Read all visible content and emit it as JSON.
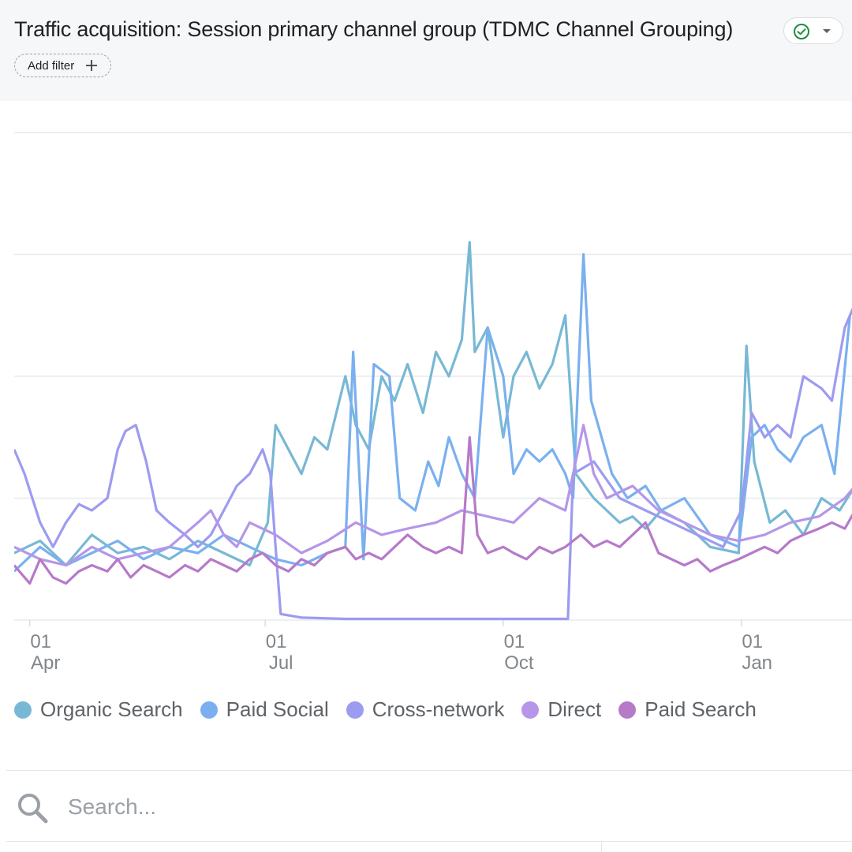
{
  "header": {
    "title": "Traffic acquisition: Session primary channel group (TDMC Channel Grouping)",
    "add_filter_label": "Add filter",
    "status_icon": "check-circle-icon",
    "status_color": "#1e8e3e"
  },
  "search": {
    "placeholder": "Search..."
  },
  "chart_data": {
    "type": "line",
    "x_ticks": [
      {
        "day": "01",
        "month": "Apr",
        "date": "2023-04-01"
      },
      {
        "day": "01",
        "month": "Jul",
        "date": "2023-07-01"
      },
      {
        "day": "01",
        "month": "Oct",
        "date": "2023-10-01"
      },
      {
        "day": "01",
        "month": "Jan",
        "date": "2024-01-01"
      }
    ],
    "x_range": [
      "2023-03-26",
      "2024-02-14"
    ],
    "ylim": [
      0,
      400
    ],
    "y_ticks": [
      0,
      100,
      200,
      300,
      400
    ],
    "y_tick_labels_visible": false,
    "grid": true,
    "legend_position": "bottom",
    "series": [
      {
        "name": "Organic Search",
        "color": "#78b8d4",
        "points": [
          [
            "2023-03-26",
            55
          ],
          [
            "2023-04-05",
            65
          ],
          [
            "2023-04-15",
            45
          ],
          [
            "2023-04-25",
            70
          ],
          [
            "2023-05-05",
            55
          ],
          [
            "2023-05-15",
            60
          ],
          [
            "2023-05-25",
            50
          ],
          [
            "2023-06-05",
            65
          ],
          [
            "2023-06-15",
            55
          ],
          [
            "2023-06-25",
            45
          ],
          [
            "2023-07-02",
            80
          ],
          [
            "2023-07-05",
            160
          ],
          [
            "2023-07-10",
            140
          ],
          [
            "2023-07-15",
            120
          ],
          [
            "2023-07-20",
            150
          ],
          [
            "2023-07-25",
            140
          ],
          [
            "2023-08-01",
            200
          ],
          [
            "2023-08-05",
            160
          ],
          [
            "2023-08-10",
            140
          ],
          [
            "2023-08-15",
            200
          ],
          [
            "2023-08-20",
            180
          ],
          [
            "2023-08-25",
            210
          ],
          [
            "2023-08-31",
            170
          ],
          [
            "2023-09-05",
            220
          ],
          [
            "2023-09-10",
            200
          ],
          [
            "2023-09-15",
            230
          ],
          [
            "2023-09-18",
            310
          ],
          [
            "2023-09-20",
            220
          ],
          [
            "2023-09-25",
            240
          ],
          [
            "2023-10-01",
            150
          ],
          [
            "2023-10-05",
            200
          ],
          [
            "2023-10-10",
            220
          ],
          [
            "2023-10-15",
            190
          ],
          [
            "2023-10-20",
            210
          ],
          [
            "2023-10-25",
            250
          ],
          [
            "2023-10-29",
            120
          ],
          [
            "2023-11-05",
            100
          ],
          [
            "2023-11-10",
            90
          ],
          [
            "2023-11-15",
            80
          ],
          [
            "2023-11-20",
            85
          ],
          [
            "2023-11-25",
            75
          ],
          [
            "2023-12-01",
            90
          ],
          [
            "2023-12-10",
            80
          ],
          [
            "2023-12-20",
            60
          ],
          [
            "2023-12-31",
            55
          ],
          [
            "2024-01-03",
            225
          ],
          [
            "2024-01-06",
            130
          ],
          [
            "2024-01-12",
            80
          ],
          [
            "2024-01-18",
            90
          ],
          [
            "2024-01-25",
            70
          ],
          [
            "2024-02-01",
            100
          ],
          [
            "2024-02-08",
            90
          ],
          [
            "2024-02-14",
            110
          ]
        ]
      },
      {
        "name": "Paid Social",
        "color": "#7ab0ef",
        "points": [
          [
            "2023-03-26",
            40
          ],
          [
            "2023-04-05",
            60
          ],
          [
            "2023-04-15",
            45
          ],
          [
            "2023-04-25",
            55
          ],
          [
            "2023-05-05",
            65
          ],
          [
            "2023-05-15",
            50
          ],
          [
            "2023-05-25",
            60
          ],
          [
            "2023-06-05",
            55
          ],
          [
            "2023-06-15",
            70
          ],
          [
            "2023-06-25",
            60
          ],
          [
            "2023-07-05",
            50
          ],
          [
            "2023-07-15",
            45
          ],
          [
            "2023-07-25",
            55
          ],
          [
            "2023-08-01",
            60
          ],
          [
            "2023-08-04",
            220
          ],
          [
            "2023-08-08",
            50
          ],
          [
            "2023-08-12",
            210
          ],
          [
            "2023-08-18",
            200
          ],
          [
            "2023-08-22",
            100
          ],
          [
            "2023-08-28",
            90
          ],
          [
            "2023-09-02",
            130
          ],
          [
            "2023-09-06",
            110
          ],
          [
            "2023-09-10",
            150
          ],
          [
            "2023-09-15",
            120
          ],
          [
            "2023-09-20",
            100
          ],
          [
            "2023-09-25",
            240
          ],
          [
            "2023-10-01",
            200
          ],
          [
            "2023-10-05",
            120
          ],
          [
            "2023-10-10",
            140
          ],
          [
            "2023-10-15",
            130
          ],
          [
            "2023-10-20",
            140
          ],
          [
            "2023-10-25",
            120
          ],
          [
            "2023-10-28",
            100
          ],
          [
            "2023-11-01",
            300
          ],
          [
            "2023-11-04",
            180
          ],
          [
            "2023-11-08",
            150
          ],
          [
            "2023-11-12",
            120
          ],
          [
            "2023-11-18",
            100
          ],
          [
            "2023-11-25",
            110
          ],
          [
            "2023-12-01",
            90
          ],
          [
            "2023-12-10",
            100
          ],
          [
            "2023-12-20",
            70
          ],
          [
            "2023-12-31",
            60
          ],
          [
            "2024-01-05",
            150
          ],
          [
            "2024-01-10",
            160
          ],
          [
            "2024-01-15",
            140
          ],
          [
            "2024-01-20",
            130
          ],
          [
            "2024-01-25",
            150
          ],
          [
            "2024-02-01",
            160
          ],
          [
            "2024-02-06",
            120
          ],
          [
            "2024-02-12",
            250
          ]
        ]
      },
      {
        "name": "Cross-network",
        "color": "#9d9bf0",
        "points": [
          [
            "2023-03-26",
            140
          ],
          [
            "2023-03-30",
            120
          ],
          [
            "2023-04-05",
            80
          ],
          [
            "2023-04-10",
            60
          ],
          [
            "2023-04-15",
            80
          ],
          [
            "2023-04-20",
            95
          ],
          [
            "2023-04-25",
            90
          ],
          [
            "2023-05-01",
            100
          ],
          [
            "2023-05-05",
            140
          ],
          [
            "2023-05-08",
            155
          ],
          [
            "2023-05-12",
            160
          ],
          [
            "2023-05-16",
            130
          ],
          [
            "2023-05-20",
            90
          ],
          [
            "2023-05-25",
            80
          ],
          [
            "2023-05-31",
            70
          ],
          [
            "2023-06-05",
            60
          ],
          [
            "2023-06-10",
            70
          ],
          [
            "2023-06-15",
            90
          ],
          [
            "2023-06-20",
            110
          ],
          [
            "2023-06-25",
            120
          ],
          [
            "2023-06-30",
            140
          ],
          [
            "2023-07-03",
            120
          ],
          [
            "2023-07-05",
            60
          ],
          [
            "2023-07-07",
            5
          ],
          [
            "2023-07-15",
            2
          ],
          [
            "2023-08-01",
            1
          ],
          [
            "2023-09-01",
            1
          ],
          [
            "2023-10-01",
            1
          ],
          [
            "2023-10-26",
            1
          ],
          [
            "2023-10-28",
            120
          ],
          [
            "2023-11-05",
            130
          ],
          [
            "2023-11-15",
            100
          ],
          [
            "2023-11-25",
            90
          ],
          [
            "2023-12-05",
            80
          ],
          [
            "2023-12-15",
            70
          ],
          [
            "2023-12-25",
            60
          ],
          [
            "2024-01-01",
            90
          ],
          [
            "2024-01-05",
            170
          ],
          [
            "2024-01-10",
            150
          ],
          [
            "2024-01-15",
            160
          ],
          [
            "2024-01-20",
            150
          ],
          [
            "2024-01-25",
            200
          ],
          [
            "2024-02-01",
            190
          ],
          [
            "2024-02-05",
            180
          ],
          [
            "2024-02-10",
            240
          ],
          [
            "2024-02-14",
            260
          ]
        ]
      },
      {
        "name": "Direct",
        "color": "#b596e8",
        "points": [
          [
            "2023-03-26",
            60
          ],
          [
            "2023-04-05",
            50
          ],
          [
            "2023-04-15",
            45
          ],
          [
            "2023-04-25",
            60
          ],
          [
            "2023-05-05",
            50
          ],
          [
            "2023-05-15",
            55
          ],
          [
            "2023-05-25",
            60
          ],
          [
            "2023-06-05",
            80
          ],
          [
            "2023-06-10",
            90
          ],
          [
            "2023-06-15",
            70
          ],
          [
            "2023-06-20",
            60
          ],
          [
            "2023-06-25",
            80
          ],
          [
            "2023-07-05",
            70
          ],
          [
            "2023-07-15",
            55
          ],
          [
            "2023-07-25",
            65
          ],
          [
            "2023-08-05",
            80
          ],
          [
            "2023-08-15",
            70
          ],
          [
            "2023-08-25",
            75
          ],
          [
            "2023-09-05",
            80
          ],
          [
            "2023-09-15",
            90
          ],
          [
            "2023-09-25",
            85
          ],
          [
            "2023-10-05",
            80
          ],
          [
            "2023-10-15",
            100
          ],
          [
            "2023-10-25",
            90
          ],
          [
            "2023-11-01",
            160
          ],
          [
            "2023-11-05",
            120
          ],
          [
            "2023-11-10",
            100
          ],
          [
            "2023-11-20",
            110
          ],
          [
            "2023-11-30",
            90
          ],
          [
            "2023-12-10",
            80
          ],
          [
            "2023-12-20",
            70
          ],
          [
            "2023-12-31",
            65
          ],
          [
            "2024-01-10",
            70
          ],
          [
            "2024-01-20",
            80
          ],
          [
            "2024-01-31",
            85
          ],
          [
            "2024-02-10",
            100
          ],
          [
            "2024-02-14",
            110
          ]
        ]
      },
      {
        "name": "Paid Search",
        "color": "#b67ac9",
        "points": [
          [
            "2023-03-26",
            45
          ],
          [
            "2023-04-01",
            30
          ],
          [
            "2023-04-05",
            50
          ],
          [
            "2023-04-10",
            35
          ],
          [
            "2023-04-15",
            30
          ],
          [
            "2023-04-20",
            40
          ],
          [
            "2023-04-25",
            45
          ],
          [
            "2023-05-01",
            40
          ],
          [
            "2023-05-05",
            50
          ],
          [
            "2023-05-10",
            35
          ],
          [
            "2023-05-15",
            45
          ],
          [
            "2023-05-20",
            40
          ],
          [
            "2023-05-25",
            35
          ],
          [
            "2023-05-31",
            45
          ],
          [
            "2023-06-05",
            40
          ],
          [
            "2023-06-10",
            50
          ],
          [
            "2023-06-15",
            45
          ],
          [
            "2023-06-20",
            40
          ],
          [
            "2023-06-25",
            50
          ],
          [
            "2023-06-30",
            55
          ],
          [
            "2023-07-05",
            45
          ],
          [
            "2023-07-10",
            40
          ],
          [
            "2023-07-15",
            50
          ],
          [
            "2023-07-20",
            45
          ],
          [
            "2023-07-25",
            55
          ],
          [
            "2023-08-01",
            60
          ],
          [
            "2023-08-05",
            50
          ],
          [
            "2023-08-10",
            55
          ],
          [
            "2023-08-15",
            50
          ],
          [
            "2023-08-20",
            60
          ],
          [
            "2023-08-25",
            70
          ],
          [
            "2023-08-31",
            60
          ],
          [
            "2023-09-05",
            55
          ],
          [
            "2023-09-10",
            60
          ],
          [
            "2023-09-15",
            55
          ],
          [
            "2023-09-18",
            150
          ],
          [
            "2023-09-21",
            70
          ],
          [
            "2023-09-25",
            55
          ],
          [
            "2023-10-01",
            60
          ],
          [
            "2023-10-05",
            55
          ],
          [
            "2023-10-10",
            50
          ],
          [
            "2023-10-15",
            60
          ],
          [
            "2023-10-20",
            55
          ],
          [
            "2023-10-25",
            60
          ],
          [
            "2023-10-31",
            70
          ],
          [
            "2023-11-05",
            60
          ],
          [
            "2023-11-10",
            65
          ],
          [
            "2023-11-15",
            60
          ],
          [
            "2023-11-20",
            70
          ],
          [
            "2023-11-25",
            80
          ],
          [
            "2023-11-30",
            55
          ],
          [
            "2023-12-05",
            50
          ],
          [
            "2023-12-10",
            45
          ],
          [
            "2023-12-15",
            50
          ],
          [
            "2023-12-20",
            40
          ],
          [
            "2023-12-25",
            45
          ],
          [
            "2023-12-31",
            50
          ],
          [
            "2024-01-05",
            55
          ],
          [
            "2024-01-10",
            60
          ],
          [
            "2024-01-15",
            55
          ],
          [
            "2024-01-20",
            65
          ],
          [
            "2024-01-25",
            70
          ],
          [
            "2024-01-31",
            75
          ],
          [
            "2024-02-05",
            80
          ],
          [
            "2024-02-10",
            75
          ],
          [
            "2024-02-14",
            90
          ]
        ]
      }
    ]
  }
}
